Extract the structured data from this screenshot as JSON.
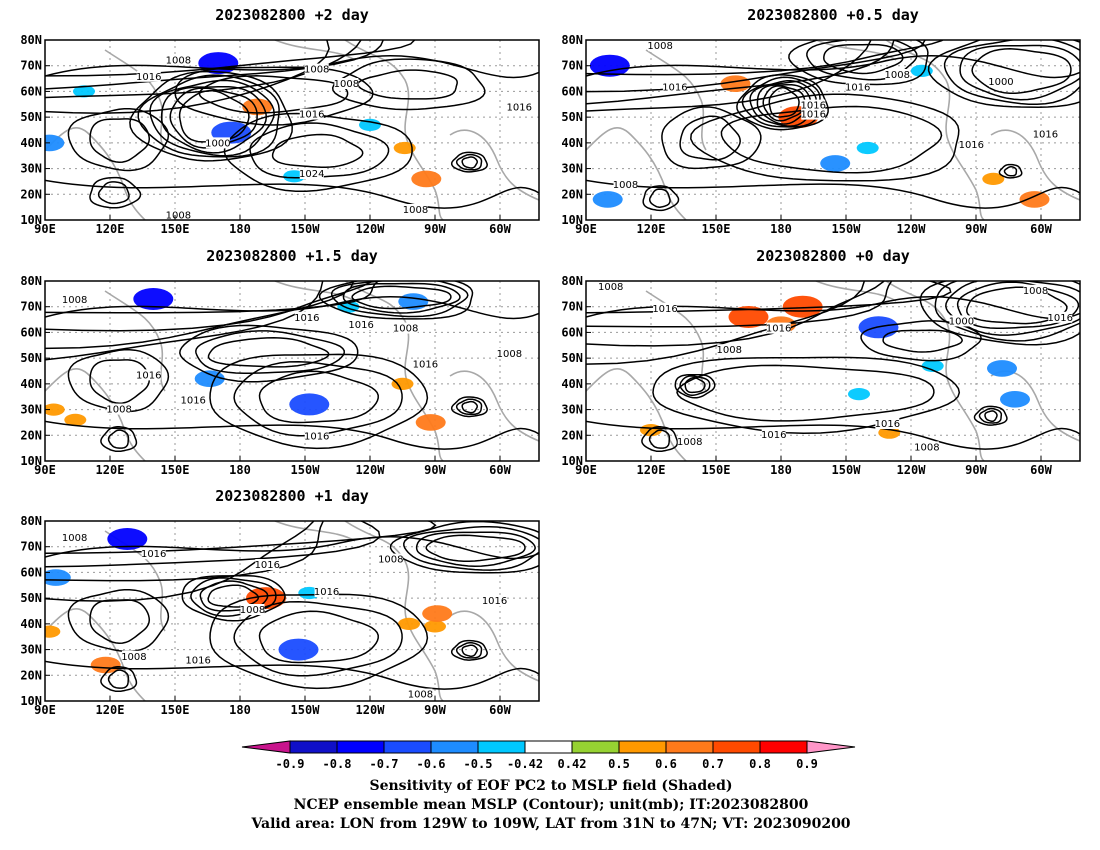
{
  "panels": [
    {
      "title": "2023082800 +2 day",
      "contour_labels": [
        "1008",
        "1016",
        "1008",
        "1008",
        "1000",
        "1016",
        "1024",
        "1016",
        "1008",
        "1008"
      ],
      "shading": [
        {
          "lon": 170,
          "lat": 71,
          "value": -0.8
        },
        {
          "lon": 176,
          "lat": 44,
          "value": -0.7
        },
        {
          "lon": 188,
          "lat": 54,
          "value": 0.6
        },
        {
          "lon": 92,
          "lat": 40,
          "value": -0.6
        },
        {
          "lon": 108,
          "lat": 60,
          "value": -0.5
        },
        {
          "lon": 205,
          "lat": 27,
          "value": -0.5
        },
        {
          "lon": 256,
          "lat": 38,
          "value": 0.5
        },
        {
          "lon": 266,
          "lat": 26,
          "value": 0.6
        },
        {
          "lon": 240,
          "lat": 47,
          "value": -0.5
        }
      ]
    },
    {
      "title": "2023082800 +0.5 day",
      "contour_labels": [
        "1008",
        "1016",
        "1016",
        "1016",
        "1008",
        "1016",
        "1000",
        "1016",
        "1016",
        "1008"
      ],
      "shading": [
        {
          "lon": 101,
          "lat": 70,
          "value": -0.8
        },
        {
          "lon": 159,
          "lat": 63,
          "value": 0.6
        },
        {
          "lon": 188,
          "lat": 50,
          "value": 0.7
        },
        {
          "lon": 205,
          "lat": 32,
          "value": -0.6
        },
        {
          "lon": 220,
          "lat": 38,
          "value": -0.5
        },
        {
          "lon": 297,
          "lat": 18,
          "value": 0.6
        },
        {
          "lon": 278,
          "lat": 26,
          "value": 0.5
        },
        {
          "lon": 100,
          "lat": 18,
          "value": -0.6
        },
        {
          "lon": 245,
          "lat": 68,
          "value": -0.5
        }
      ]
    },
    {
      "title": "2023082800 +1.5 day",
      "contour_labels": [
        "1008",
        "1008",
        "1016",
        "1016",
        "1008",
        "1016",
        "1016",
        "1008",
        "1016",
        "1016"
      ],
      "shading": [
        {
          "lon": 140,
          "lat": 73,
          "value": -0.8
        },
        {
          "lon": 212,
          "lat": 32,
          "value": -0.7
        },
        {
          "lon": 260,
          "lat": 72,
          "value": -0.6
        },
        {
          "lon": 94,
          "lat": 30,
          "value": 0.5
        },
        {
          "lon": 104,
          "lat": 26,
          "value": 0.5
        },
        {
          "lon": 166,
          "lat": 42,
          "value": -0.6
        },
        {
          "lon": 268,
          "lat": 25,
          "value": 0.6
        },
        {
          "lon": 255,
          "lat": 40,
          "value": 0.5
        },
        {
          "lon": 230,
          "lat": 70,
          "value": -0.5
        }
      ]
    },
    {
      "title": "2023082800 +0 day",
      "contour_labels": [
        "1008",
        "1016",
        "1008",
        "1016",
        "1008",
        "1000",
        "1016",
        "1016",
        "1016",
        "1008",
        "1008"
      ],
      "shading": [
        {
          "lon": 165,
          "lat": 66,
          "value": 0.7
        },
        {
          "lon": 190,
          "lat": 70,
          "value": 0.7
        },
        {
          "lon": 180,
          "lat": 63,
          "value": 0.6
        },
        {
          "lon": 225,
          "lat": 62,
          "value": -0.7
        },
        {
          "lon": 282,
          "lat": 46,
          "value": -0.6
        },
        {
          "lon": 216,
          "lat": 36,
          "value": -0.5
        },
        {
          "lon": 250,
          "lat": 47,
          "value": -0.5
        },
        {
          "lon": 288,
          "lat": 34,
          "value": -0.6
        },
        {
          "lon": 120,
          "lat": 22,
          "value": 0.5
        },
        {
          "lon": 230,
          "lat": 21,
          "value": 0.5
        }
      ]
    },
    {
      "title": "2023082800 +1 day",
      "contour_labels": [
        "1008",
        "1016",
        "1016",
        "1008",
        "1016",
        "1008",
        "1008",
        "1016",
        "1016",
        "1008"
      ],
      "shading": [
        {
          "lon": 128,
          "lat": 73,
          "value": -0.8
        },
        {
          "lon": 207,
          "lat": 30,
          "value": -0.7
        },
        {
          "lon": 192,
          "lat": 50,
          "value": 0.7
        },
        {
          "lon": 95,
          "lat": 58,
          "value": -0.6
        },
        {
          "lon": 270,
          "lat": 39,
          "value": 0.5
        },
        {
          "lon": 271,
          "lat": 44,
          "value": 0.6
        },
        {
          "lon": 118,
          "lat": 24,
          "value": 0.6
        },
        {
          "lon": 258,
          "lat": 40,
          "value": 0.5
        },
        {
          "lon": 92,
          "lat": 37,
          "value": 0.5
        },
        {
          "lon": 212,
          "lat": 52,
          "value": -0.5
        }
      ]
    }
  ],
  "axes": {
    "lon_ticks": [
      "90E",
      "120E",
      "150E",
      "180",
      "150W",
      "120W",
      "90W",
      "60W"
    ],
    "lon_values": [
      90,
      120,
      150,
      180,
      210,
      240,
      270,
      300
    ],
    "lat_ticks": [
      "80N",
      "70N",
      "60N",
      "50N",
      "40N",
      "30N",
      "20N",
      "10N"
    ],
    "lat_values": [
      80,
      70,
      60,
      50,
      40,
      30,
      20,
      10
    ],
    "lon_range": [
      90,
      318
    ],
    "lat_range": [
      10,
      80
    ]
  },
  "colorbar": {
    "labels": [
      "-0.9",
      "-0.8",
      "-0.7",
      "-0.6",
      "-0.5",
      "-0.42",
      "0.42",
      "0.5",
      "0.6",
      "0.7",
      "0.8",
      "0.9"
    ],
    "colors": [
      "#1010c8",
      "#0000ff",
      "#1a4cff",
      "#1e8cff",
      "#00c8ff",
      "#ffffff",
      "#96d232",
      "#ff9900",
      "#ff7a1a",
      "#ff4a00",
      "#ff0000"
    ],
    "low_extend_color": "#c8148c",
    "high_extend_color": "#ff96c8"
  },
  "caption": {
    "line1": "Sensitivity of EOF PC2 to MSLP field (Shaded)",
    "line2": "NCEP ensemble mean MSLP (Contour); unit(mb); IT:2023082800",
    "line3": "Valid area: LON from 129W to 109W, LAT from 31N to 47N; VT: 2023090200"
  }
}
